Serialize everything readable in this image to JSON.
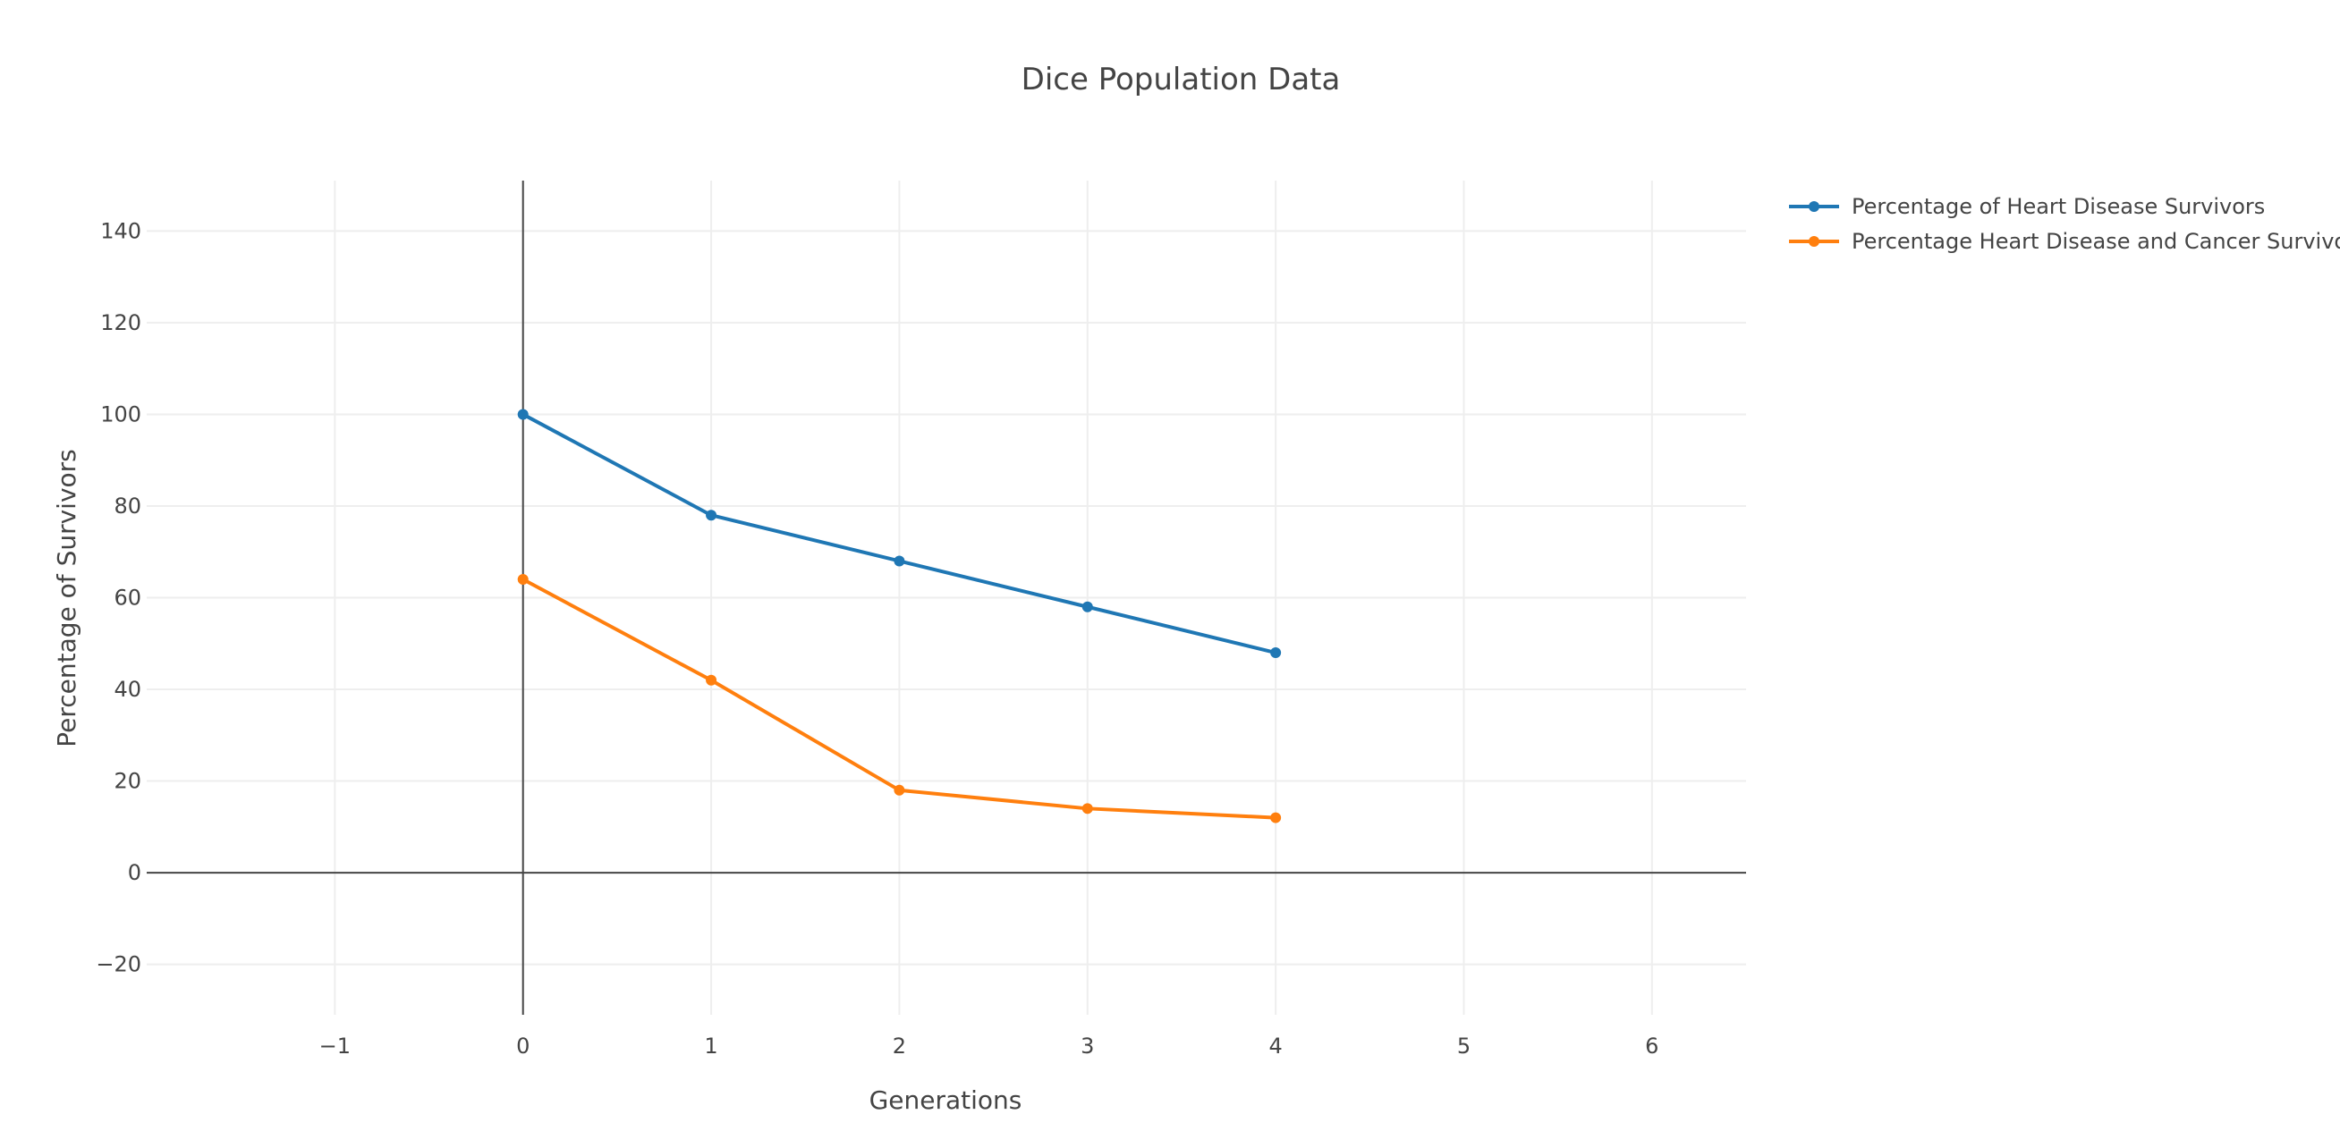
{
  "chart_data": {
    "type": "line",
    "title": "Dice Population Data",
    "xlabel": "Generations",
    "ylabel": "Percentage of Survivors",
    "xlim": [
      -2,
      6.5
    ],
    "ylim": [
      -31,
      151
    ],
    "x_ticks": [
      -1,
      0,
      1,
      2,
      3,
      4,
      5,
      6
    ],
    "x_tick_labels": [
      "−1",
      "0",
      "1",
      "2",
      "3",
      "4",
      "5",
      "6"
    ],
    "y_ticks": [
      -20,
      0,
      20,
      40,
      60,
      80,
      100,
      120,
      140
    ],
    "y_tick_labels": [
      "−20",
      "0",
      "20",
      "40",
      "60",
      "80",
      "100",
      "120",
      "140"
    ],
    "grid": true,
    "legend_position": "top-right",
    "x": [
      0,
      1,
      2,
      3,
      4
    ],
    "series": [
      {
        "name": "Percentage of Heart Disease Survivors",
        "values": [
          100,
          78,
          68,
          58,
          48
        ],
        "color": "#1f77b4"
      },
      {
        "name": "Percentage Heart Disease and Cancer Survivors",
        "values": [
          64,
          42,
          18,
          14,
          12
        ],
        "color": "#ff7f0e"
      }
    ]
  }
}
